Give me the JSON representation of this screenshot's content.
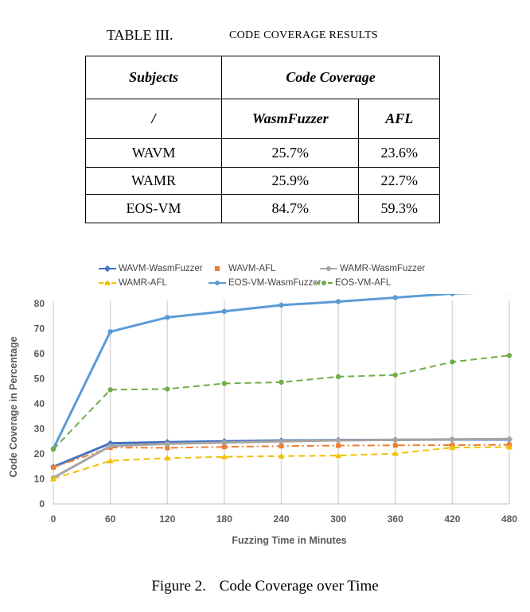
{
  "table": {
    "label": "TABLE III.",
    "title": "CODE COVERAGE RESULTS",
    "header_subjects": "Subjects",
    "header_coverage": "Code Coverage",
    "subheader_slash": "/",
    "subheader_wasmfuzzer": "WasmFuzzer",
    "subheader_afl": "AFL",
    "rows": [
      {
        "subject": "WAVM",
        "wasmfuzzer": "25.7%",
        "afl": "23.6%"
      },
      {
        "subject": "WAMR",
        "wasmfuzzer": "25.9%",
        "afl": "22.7%"
      },
      {
        "subject": "EOS-VM",
        "wasmfuzzer": "84.7%",
        "afl": "59.3%"
      }
    ]
  },
  "figure": {
    "label": "Figure 2.",
    "title": "Code Coverage over Time"
  },
  "chart_data": {
    "type": "line",
    "xlabel": "Fuzzing Time in Minutes",
    "ylabel": "Code Coverage in Percentage",
    "x": [
      0,
      60,
      120,
      180,
      240,
      300,
      360,
      420,
      480
    ],
    "xlim": [
      0,
      480
    ],
    "ylim": [
      0,
      80
    ],
    "yticks": [
      0,
      10,
      20,
      30,
      40,
      50,
      60,
      70,
      80
    ],
    "grid": "vertical",
    "legend_position": "top",
    "series": [
      {
        "name": "WAVM-WasmFuzzer",
        "color": "#4472c4",
        "style": "solid",
        "marker": "diamond",
        "values": [
          14.8,
          24.2,
          24.7,
          25.0,
          25.3,
          25.5,
          25.6,
          25.7,
          25.7
        ]
      },
      {
        "name": "WAVM-AFL",
        "color": "#ed7d31",
        "style": "dashdot",
        "marker": "square",
        "values": [
          14.6,
          22.5,
          22.4,
          22.8,
          23.1,
          23.3,
          23.4,
          23.5,
          23.6
        ]
      },
      {
        "name": "WAMR-WasmFuzzer",
        "color": "#a5a5a5",
        "style": "solid",
        "marker": "circle",
        "values": [
          10.4,
          23.1,
          24.0,
          24.5,
          25.0,
          25.4,
          25.6,
          25.8,
          25.9
        ]
      },
      {
        "name": "WAMR-AFL",
        "color": "#f2c100",
        "style": "dashed",
        "marker": "triangle",
        "values": [
          10.0,
          17.2,
          18.3,
          18.8,
          19.1,
          19.3,
          20.1,
          22.5,
          22.7
        ]
      },
      {
        "name": "EOS-VM-WasmFuzzer",
        "color": "#5b9bd5",
        "style": "solid",
        "marker": "circle",
        "values": [
          22.0,
          68.8,
          74.5,
          76.9,
          79.4,
          80.8,
          82.4,
          84.0,
          84.7
        ]
      },
      {
        "name": "EOS-VM-AFL",
        "color": "#70ad47",
        "style": "dashed",
        "marker": "circle",
        "values": [
          21.8,
          45.6,
          45.9,
          48.1,
          48.6,
          50.8,
          51.5,
          56.7,
          59.3
        ]
      }
    ]
  }
}
